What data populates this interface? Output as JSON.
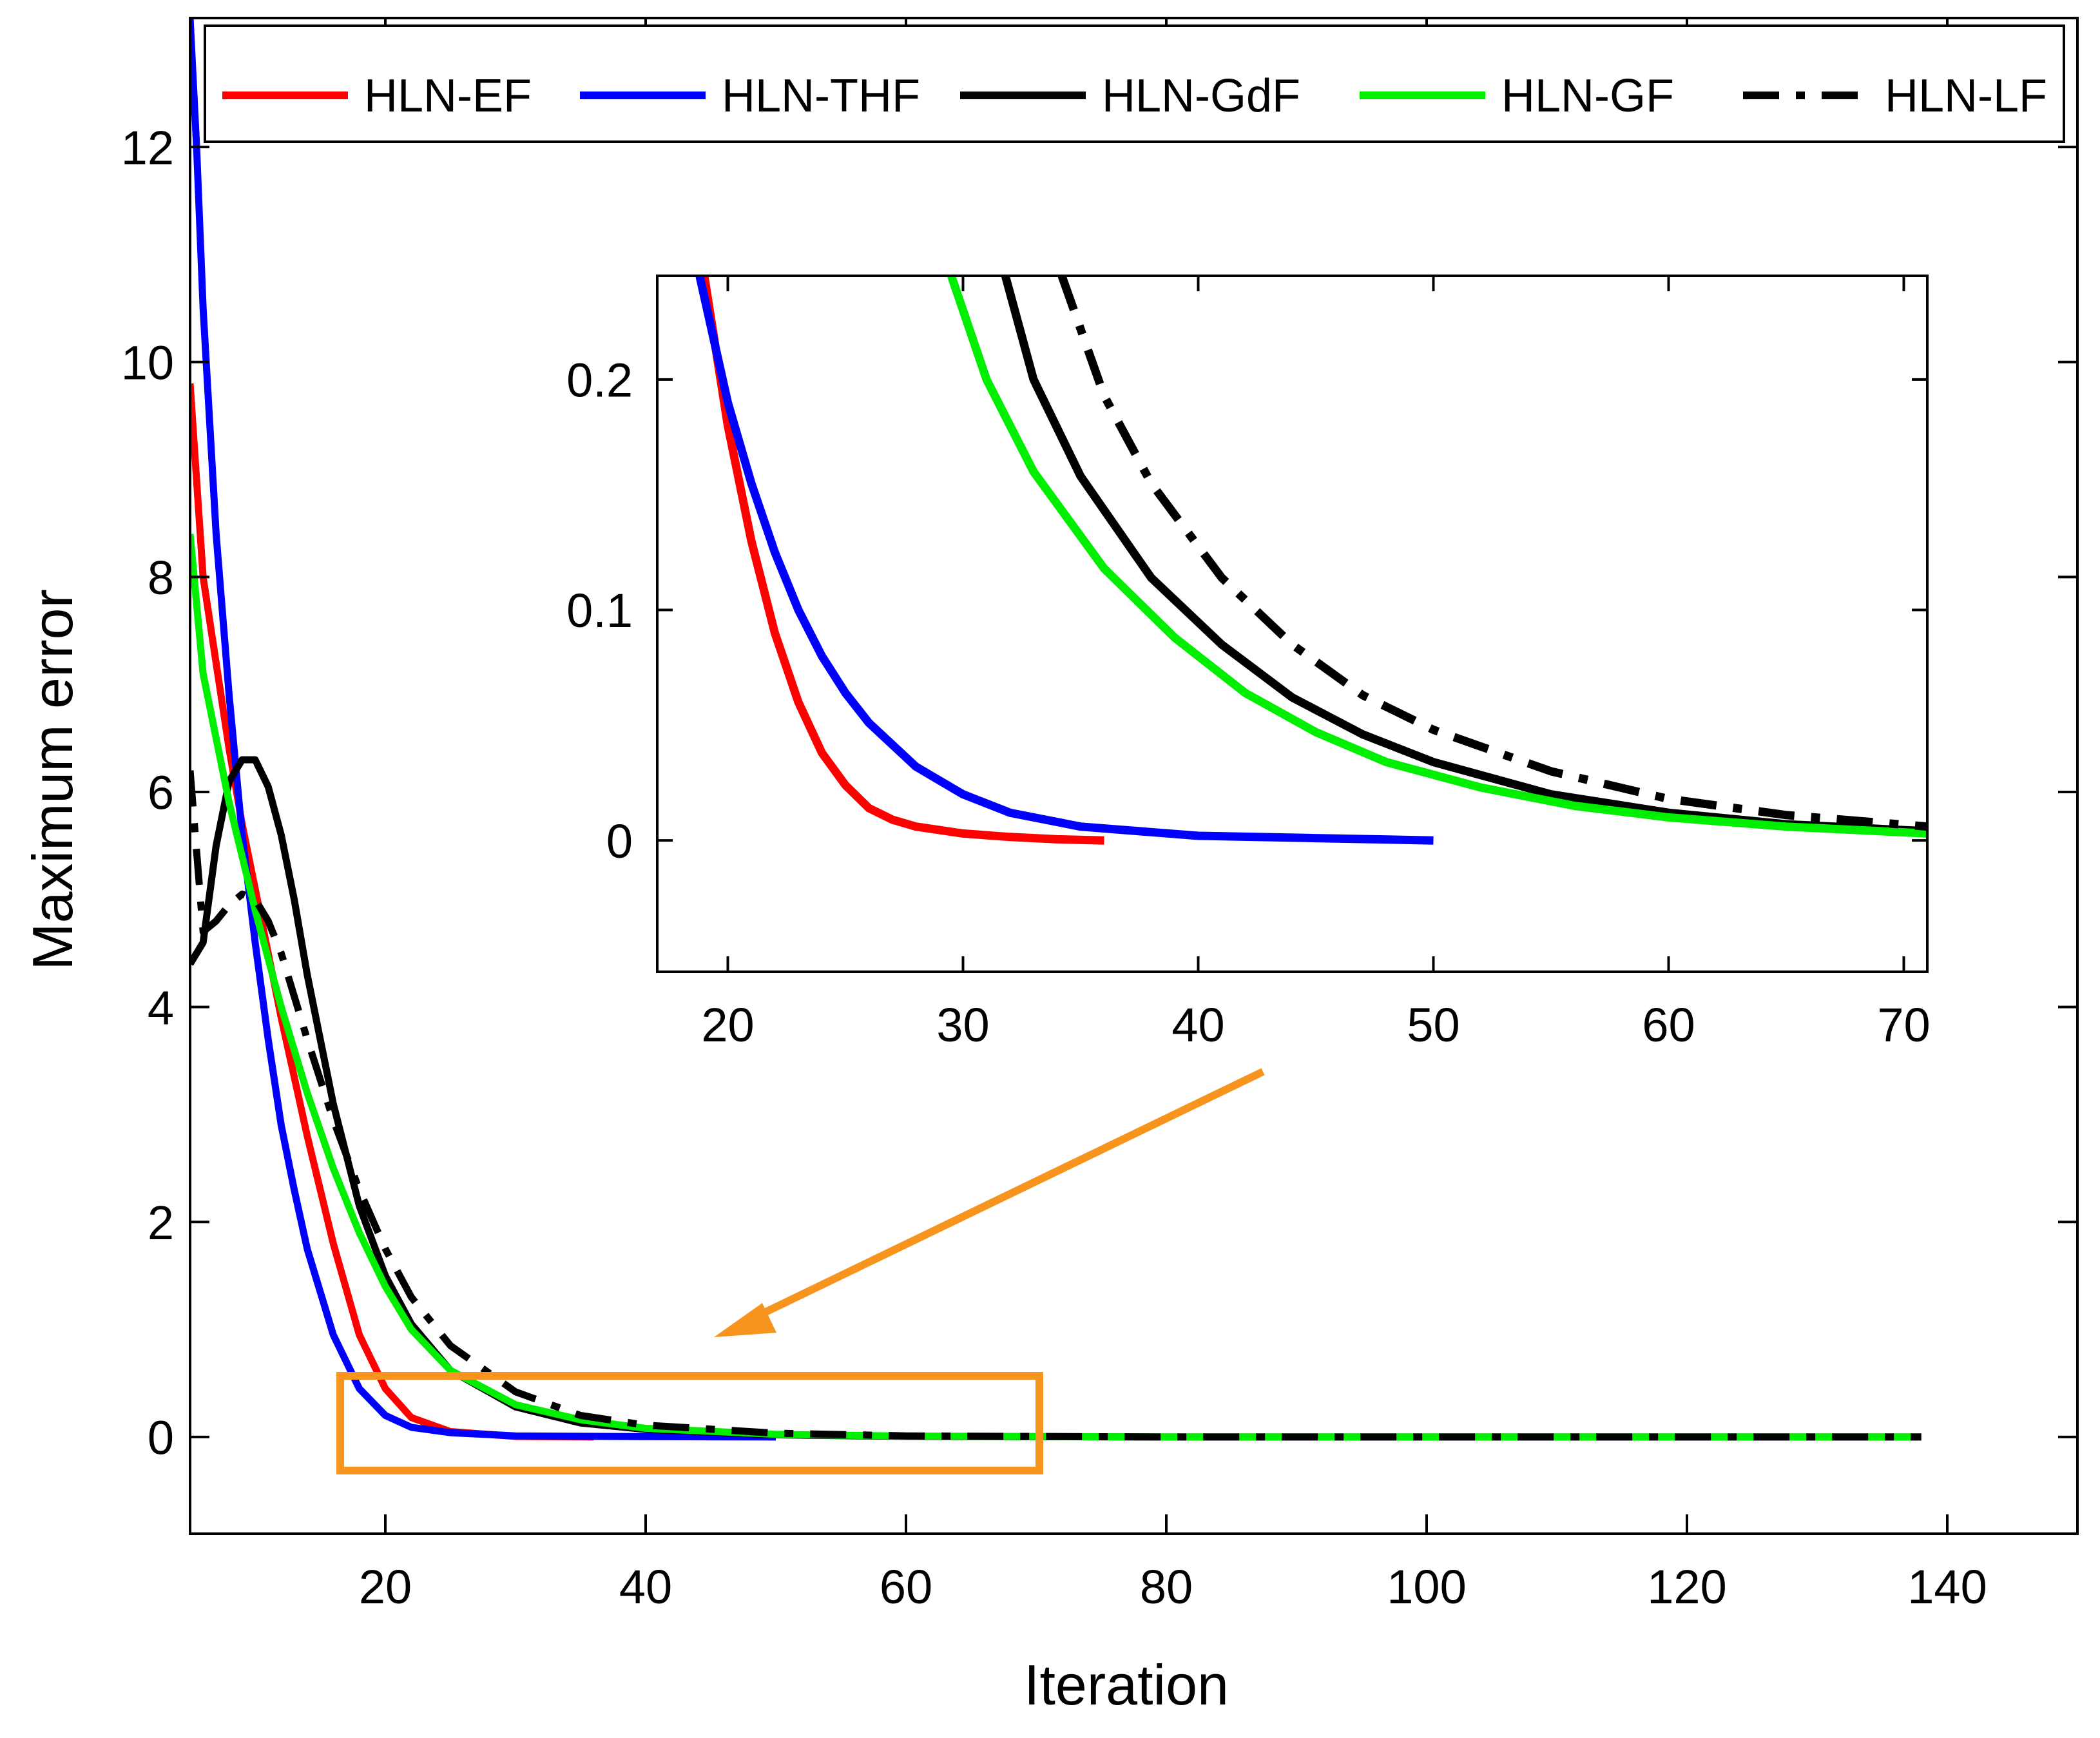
{
  "chart_data": [
    {
      "id": "main",
      "type": "line",
      "title": "",
      "xlabel": "Iteration",
      "ylabel": "Maximum error",
      "xlim": [
        5,
        150
      ],
      "ylim": [
        -0.9,
        13.2
      ],
      "xticks": [
        20,
        40,
        60,
        80,
        100,
        120,
        140
      ],
      "yticks": [
        0,
        2,
        4,
        6,
        8,
        10,
        12
      ],
      "grid": false,
      "legend_position": "top",
      "series": [
        {
          "name": "HLN-EF",
          "color": "#ff0000",
          "dash": "solid",
          "x": [
            5,
            6,
            7,
            8,
            9,
            10,
            11,
            12,
            14,
            16,
            18,
            20,
            22,
            25,
            30,
            36
          ],
          "y": [
            9.8,
            8.0,
            7.2,
            6.4,
            5.7,
            5.1,
            4.5,
            3.9,
            2.8,
            1.8,
            0.95,
            0.45,
            0.18,
            0.05,
            0.005,
            0.0
          ]
        },
        {
          "name": "HLN-THF",
          "color": "#0000ff",
          "dash": "solid",
          "x": [
            5,
            5.5,
            6,
            7,
            8,
            9,
            10,
            11,
            12,
            13,
            14,
            16,
            18,
            20,
            22,
            25,
            30,
            40,
            50
          ],
          "y": [
            13.2,
            12.0,
            10.5,
            8.4,
            6.9,
            5.6,
            4.6,
            3.7,
            2.9,
            2.3,
            1.75,
            0.95,
            0.45,
            0.2,
            0.09,
            0.04,
            0.01,
            0.003,
            0.0
          ]
        },
        {
          "name": "HLN-GdF",
          "color": "#000000",
          "dash": "solid",
          "x": [
            5,
            6,
            7,
            8,
            9,
            10,
            11,
            12,
            13,
            14,
            16,
            18,
            20,
            22,
            25,
            30,
            35,
            40,
            50,
            60,
            80,
            100,
            120,
            138
          ],
          "y": [
            4.4,
            4.6,
            5.5,
            6.1,
            6.3,
            6.3,
            6.05,
            5.6,
            5.0,
            4.3,
            3.1,
            2.15,
            1.5,
            1.05,
            0.62,
            0.28,
            0.13,
            0.07,
            0.02,
            0.005,
            0.0,
            0.0,
            0.0,
            0.0
          ]
        },
        {
          "name": "HLN-GF",
          "color": "#00ee00",
          "dash": "solid",
          "x": [
            5,
            6,
            7,
            8,
            9,
            10,
            12,
            14,
            16,
            18,
            20,
            22,
            25,
            30,
            35,
            40,
            50,
            60,
            80,
            100,
            120,
            138
          ],
          "y": [
            8.4,
            7.1,
            6.5,
            5.9,
            5.4,
            4.9,
            4.0,
            3.2,
            2.5,
            1.9,
            1.4,
            1.0,
            0.62,
            0.3,
            0.16,
            0.08,
            0.025,
            0.008,
            0.0,
            0.0,
            0.0,
            0.0
          ]
        },
        {
          "name": "HLN-LF",
          "color": "#000000",
          "dash": "dashdot",
          "x": [
            5,
            6,
            7,
            8,
            9,
            10,
            11,
            12,
            13,
            14,
            16,
            18,
            20,
            22,
            25,
            30,
            35,
            40,
            50,
            60,
            80,
            100,
            120,
            138
          ],
          "y": [
            6.2,
            4.7,
            4.8,
            4.95,
            5.05,
            5.0,
            4.8,
            4.5,
            4.1,
            3.7,
            2.95,
            2.3,
            1.75,
            1.3,
            0.85,
            0.42,
            0.2,
            0.11,
            0.035,
            0.01,
            0.0,
            0.0,
            0.0,
            0.0
          ]
        }
      ]
    },
    {
      "id": "inset",
      "type": "line",
      "title": "",
      "xlabel": "",
      "ylabel": "",
      "xlim": [
        17,
        71
      ],
      "ylim": [
        -0.057,
        0.245
      ],
      "xticks": [
        20,
        30,
        40,
        50,
        60,
        70
      ],
      "yticks": [
        0,
        0.1,
        0.2
      ],
      "ytick_labels": [
        "0",
        "0.1",
        "0.2"
      ],
      "grid": false,
      "series": [
        {
          "name": "HLN-EF",
          "color": "#ff0000",
          "dash": "solid",
          "x": [
            19,
            20,
            21,
            22,
            23,
            24,
            25,
            26,
            27,
            28,
            30,
            32,
            34,
            36
          ],
          "y": [
            0.245,
            0.18,
            0.13,
            0.09,
            0.06,
            0.038,
            0.024,
            0.014,
            0.009,
            0.006,
            0.003,
            0.0015,
            0.0005,
            0.0
          ]
        },
        {
          "name": "HLN-THF",
          "color": "#0000ff",
          "dash": "solid",
          "x": [
            18.8,
            20,
            21,
            22,
            23,
            24,
            25,
            26,
            28,
            30,
            32,
            35,
            40,
            45,
            50
          ],
          "y": [
            0.245,
            0.19,
            0.155,
            0.125,
            0.1,
            0.08,
            0.064,
            0.051,
            0.032,
            0.02,
            0.012,
            0.006,
            0.002,
            0.001,
            0.0
          ]
        },
        {
          "name": "HLN-GdF",
          "color": "#000000",
          "dash": "solid",
          "x": [
            31.8,
            33,
            35,
            38,
            41,
            44,
            47,
            50,
            55,
            60,
            65,
            71
          ],
          "y": [
            0.245,
            0.2,
            0.158,
            0.114,
            0.085,
            0.062,
            0.046,
            0.034,
            0.02,
            0.012,
            0.007,
            0.004
          ]
        },
        {
          "name": "HLN-GF",
          "color": "#00ee00",
          "dash": "solid",
          "x": [
            29.5,
            31,
            33,
            36,
            39,
            42,
            45,
            48,
            52,
            56,
            60,
            65,
            71
          ],
          "y": [
            0.245,
            0.2,
            0.16,
            0.118,
            0.088,
            0.064,
            0.047,
            0.034,
            0.023,
            0.015,
            0.01,
            0.006,
            0.003
          ]
        },
        {
          "name": "HLN-LF",
          "color": "#000000",
          "dash": "dashdot",
          "x": [
            34.2,
            36,
            38,
            41,
            44,
            47,
            50,
            55,
            60,
            65,
            71
          ],
          "y": [
            0.245,
            0.193,
            0.155,
            0.114,
            0.085,
            0.063,
            0.048,
            0.03,
            0.018,
            0.011,
            0.006
          ]
        }
      ]
    }
  ]
}
